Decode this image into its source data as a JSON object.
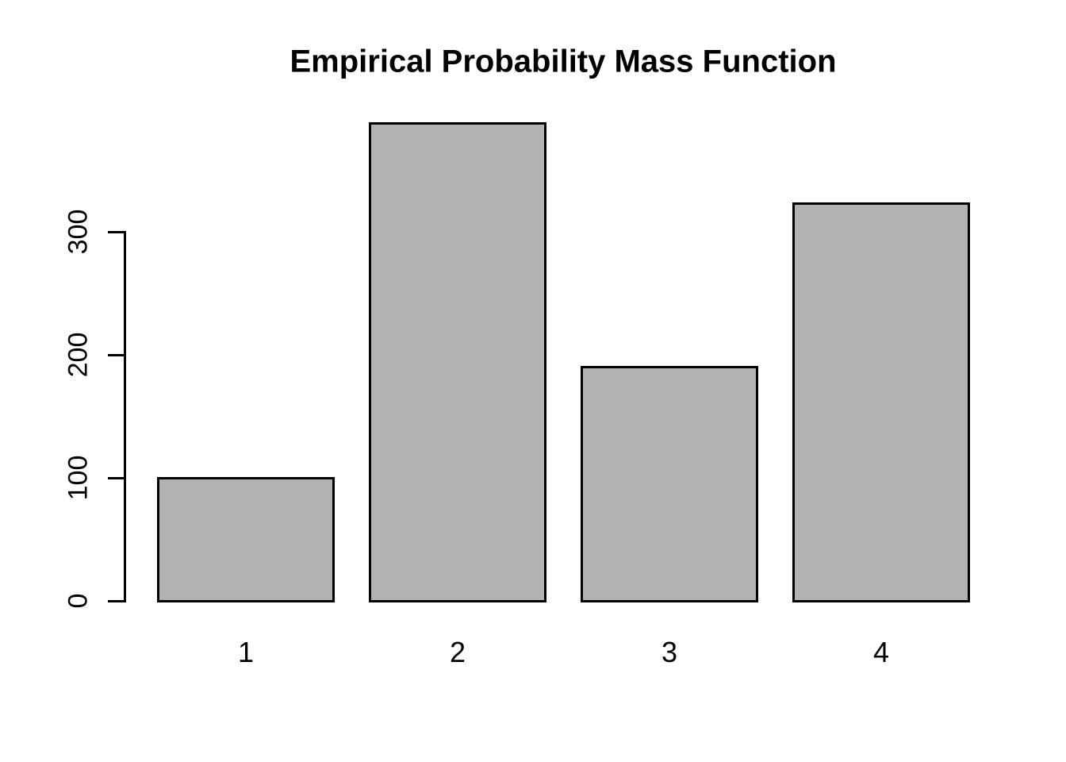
{
  "chart_data": {
    "type": "bar",
    "title": "Empirical Probability Mass Function",
    "categories": [
      "1",
      "2",
      "3",
      "4"
    ],
    "values": [
      100,
      388,
      190,
      323
    ],
    "xlabel": "",
    "ylabel": "",
    "yticks": [
      0,
      100,
      200,
      300
    ],
    "ylim": [
      0,
      388
    ],
    "grid": false,
    "legend": null,
    "colors": {
      "bar_fill": "#b2b2b2",
      "bar_border": "#000000",
      "axis": "#000000",
      "text": "#000000",
      "background": "#ffffff"
    }
  }
}
